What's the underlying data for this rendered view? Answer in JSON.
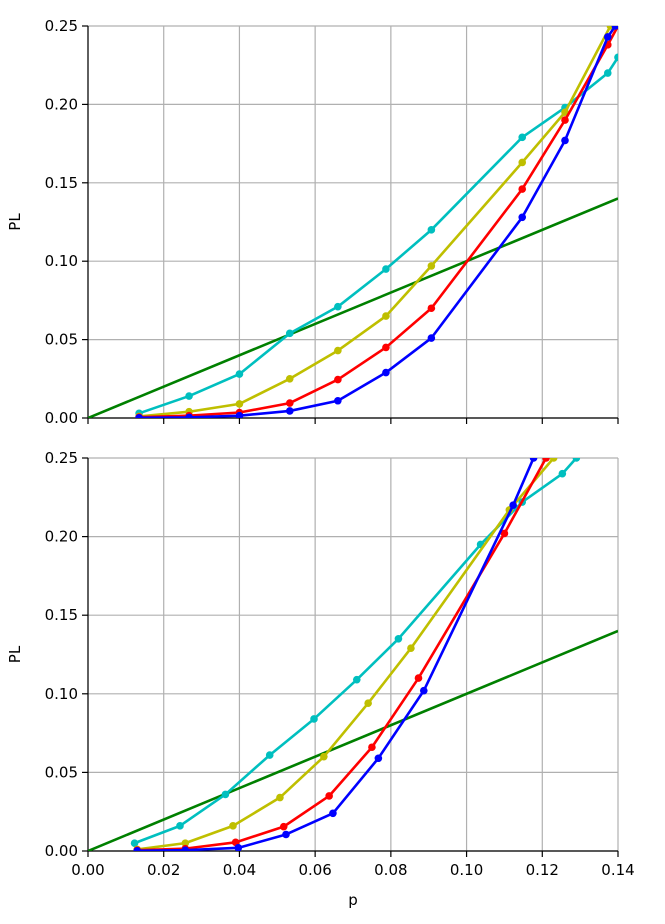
{
  "chart_data": [
    {
      "type": "line",
      "title": "",
      "xlabel": "",
      "ylabel": "PL",
      "xlim": [
        0.0,
        0.14
      ],
      "ylim": [
        0.0,
        0.25
      ],
      "xticks": [
        0.0,
        0.02,
        0.04,
        0.06,
        0.08,
        0.1,
        0.12,
        0.14
      ],
      "xtick_labels": [],
      "yticks": [
        0.0,
        0.05,
        0.1,
        0.15,
        0.2,
        0.25
      ],
      "ytick_labels": [
        "0.00",
        "0.05",
        "0.10",
        "0.15",
        "0.20",
        "0.25"
      ],
      "grid": true,
      "legend": "none",
      "series": [
        {
          "color": "#008000",
          "markers": false,
          "x": [
            0.0,
            0.14
          ],
          "y": [
            0.0,
            0.14
          ]
        },
        {
          "color": "#00bfbf",
          "markers": true,
          "x": [
            0.0135,
            0.0267,
            0.04,
            0.0533,
            0.066,
            0.0787,
            0.0907,
            0.1147,
            0.126,
            0.1373,
            0.14
          ],
          "y": [
            0.003,
            0.014,
            0.028,
            0.054,
            0.071,
            0.095,
            0.12,
            0.179,
            0.198,
            0.22,
            0.23
          ]
        },
        {
          "color": "#bfbf00",
          "markers": true,
          "x": [
            0.0135,
            0.0267,
            0.04,
            0.0533,
            0.066,
            0.0787,
            0.0907,
            0.1147,
            0.126,
            0.138
          ],
          "y": [
            0.001,
            0.004,
            0.009,
            0.025,
            0.043,
            0.065,
            0.097,
            0.163,
            0.195,
            0.25
          ]
        },
        {
          "color": "#ff0000",
          "markers": true,
          "x": [
            0.0135,
            0.0267,
            0.04,
            0.0533,
            0.066,
            0.0787,
            0.0907,
            0.1147,
            0.126,
            0.1373,
            0.14
          ],
          "y": [
            0.0005,
            0.0015,
            0.0035,
            0.0095,
            0.0245,
            0.045,
            0.07,
            0.146,
            0.19,
            0.238,
            0.25
          ]
        },
        {
          "color": "#0000ff",
          "markers": true,
          "x": [
            0.0135,
            0.0267,
            0.04,
            0.0533,
            0.066,
            0.0787,
            0.0907,
            0.1147,
            0.126,
            0.1373,
            0.1393
          ],
          "y": [
            0.0001,
            0.0004,
            0.0015,
            0.0045,
            0.011,
            0.029,
            0.051,
            0.128,
            0.177,
            0.243,
            0.25
          ]
        }
      ]
    },
    {
      "type": "line",
      "title": "",
      "xlabel": "p",
      "ylabel": "PL",
      "xlim": [
        0.0,
        0.14
      ],
      "ylim": [
        0.0,
        0.25
      ],
      "xticks": [
        0.0,
        0.02,
        0.04,
        0.06,
        0.08,
        0.1,
        0.12,
        0.14
      ],
      "xtick_labels": [
        "0.00",
        "0.02",
        "0.04",
        "0.06",
        "0.08",
        "0.10",
        "0.12",
        "0.14"
      ],
      "yticks": [
        0.0,
        0.05,
        0.1,
        0.15,
        0.2,
        0.25
      ],
      "ytick_labels": [
        "0.00",
        "0.05",
        "0.10",
        "0.15",
        "0.20",
        "0.25"
      ],
      "grid": true,
      "legend": "none",
      "series": [
        {
          "color": "#008000",
          "markers": false,
          "x": [
            0.0,
            0.14
          ],
          "y": [
            0.0,
            0.14
          ]
        },
        {
          "color": "#00bfbf",
          "markers": true,
          "x": [
            0.0123,
            0.0243,
            0.0363,
            0.048,
            0.0597,
            0.071,
            0.082,
            0.1037,
            0.1147,
            0.1253,
            0.129
          ],
          "y": [
            0.005,
            0.016,
            0.036,
            0.061,
            0.084,
            0.109,
            0.135,
            0.195,
            0.222,
            0.24,
            0.25
          ]
        },
        {
          "color": "#bfbf00",
          "markers": true,
          "x": [
            0.013,
            0.0257,
            0.0383,
            0.0507,
            0.0623,
            0.074,
            0.0853,
            0.1113,
            0.123
          ],
          "y": [
            0.001,
            0.005,
            0.016,
            0.034,
            0.06,
            0.094,
            0.129,
            0.217,
            0.25
          ]
        },
        {
          "color": "#ff0000",
          "markers": true,
          "x": [
            0.013,
            0.0257,
            0.039,
            0.0517,
            0.0637,
            0.075,
            0.0873,
            0.11,
            0.121
          ],
          "y": [
            0.0005,
            0.0015,
            0.0055,
            0.0155,
            0.035,
            0.066,
            0.11,
            0.202,
            0.25
          ]
        },
        {
          "color": "#0000ff",
          "markers": true,
          "x": [
            0.013,
            0.0257,
            0.0397,
            0.0523,
            0.0647,
            0.0767,
            0.0887,
            0.1123,
            0.1177
          ],
          "y": [
            0.0001,
            0.0005,
            0.002,
            0.0105,
            0.024,
            0.059,
            0.102,
            0.22,
            0.25
          ]
        }
      ]
    }
  ]
}
